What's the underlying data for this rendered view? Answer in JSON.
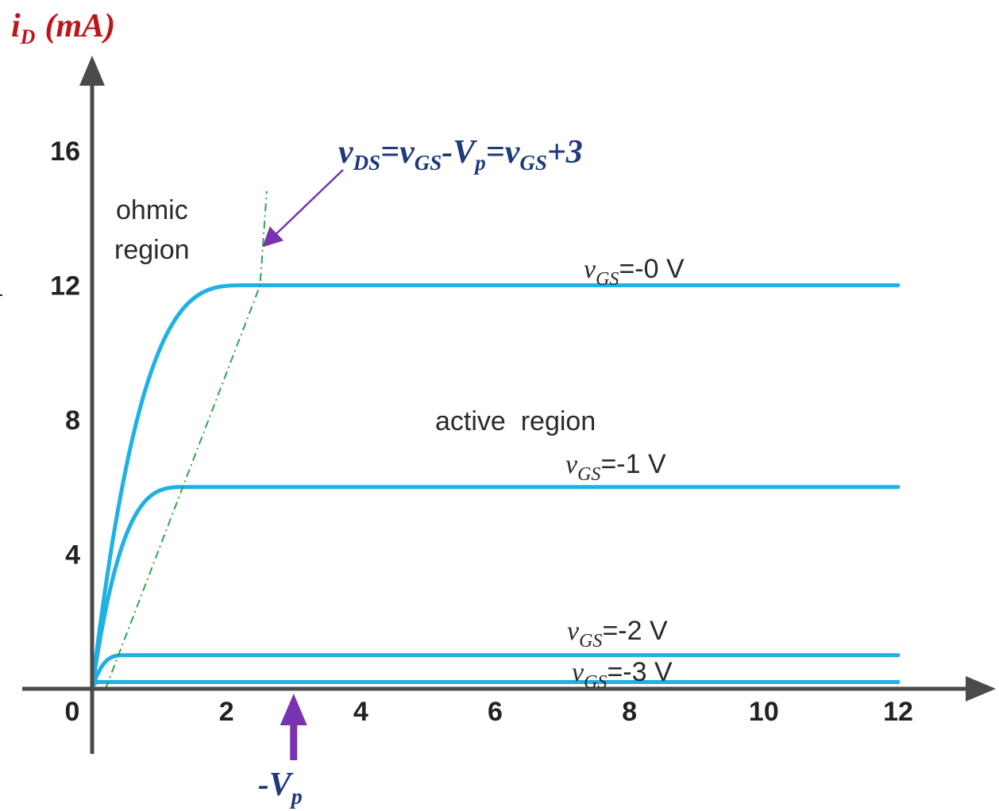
{
  "colors": {
    "curve": "#1fb0e6",
    "axis": "#4a4a4a",
    "ylabel": "#c0141c",
    "equation": "#1f3a7a",
    "pointer": "#7a33b0",
    "boundary": "#2aa84a"
  },
  "chart_data": {
    "type": "line",
    "ylabel": {
      "var": "i",
      "sub": "D",
      "unit": "(mA)"
    },
    "xlim": [
      0,
      12
    ],
    "ylim": [
      0,
      16
    ],
    "x_ticks": [
      "0",
      "2",
      "4",
      "6",
      "8",
      "10",
      "12"
    ],
    "y_ticks": [
      "4",
      "8",
      "12",
      "16"
    ],
    "series": [
      {
        "name_pre": "v",
        "name_sub": "GS",
        "name_post": "=-0 V",
        "vgs": 0,
        "saturation_current": 12,
        "knee_vds": 2.3
      },
      {
        "name_pre": "v",
        "name_sub": "GS",
        "name_post": "=-1 V",
        "vgs": -1,
        "saturation_current": 6,
        "knee_vds": 1.4
      },
      {
        "name_pre": "v",
        "name_sub": "GS",
        "name_post": "=-2 V",
        "vgs": -2,
        "saturation_current": 1,
        "knee_vds": 0.5
      },
      {
        "name_pre": "v",
        "name_sub": "GS",
        "name_post": "=-3 V",
        "vgs": -3,
        "saturation_current": 0.2,
        "knee_vds": 0.1
      }
    ],
    "boundary_line": {
      "points": [
        [
          0.2,
          0
        ],
        [
          2.5,
          12
        ],
        [
          2.6,
          14.8
        ]
      ]
    },
    "annotations": {
      "ohmic_region": [
        "ohmic",
        "region"
      ],
      "active_region": "active  region",
      "boundary_equation": [
        {
          "t": "v",
          "sub": "DS"
        },
        {
          "t": "=v",
          "sub": "GS"
        },
        {
          "t": "-V",
          "sub": "p"
        },
        {
          "t": "=v",
          "sub": "GS"
        },
        {
          "t": "+3"
        }
      ],
      "pinch_off": {
        "label_pre": "-V",
        "label_sub": "p",
        "x": 3
      }
    }
  }
}
